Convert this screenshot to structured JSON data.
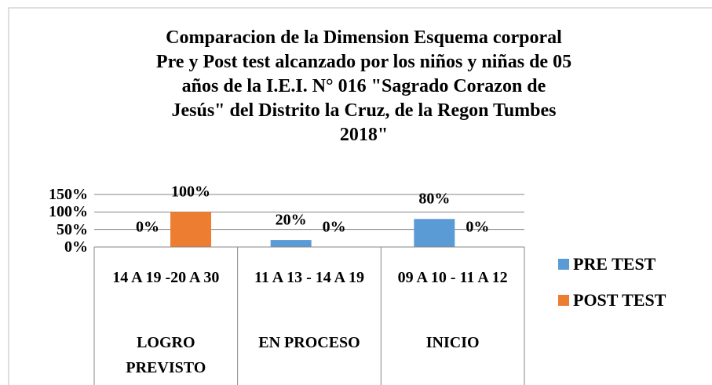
{
  "chart_data": {
    "type": "bar",
    "title": [
      "Comparacion de la Dimension Esquema corporal",
      "Pre y Post test alcanzado por los niños y niñas de 05",
      "años de la I.E.I. N° 016 \"Sagrado Corazon de",
      "Jesús\" del Distrito la Cruz, de la Regon Tumbes",
      "2018\""
    ],
    "categories": [
      "14 A 19 -20 A 30",
      "11 A 13 - 14 A 19",
      "09 A 10 - 11 A 12"
    ],
    "groups": [
      "LOGRO PREVISTO",
      "EN PROCESO",
      "INICIO"
    ],
    "series": [
      {
        "name": "PRE TEST",
        "color": "#5b9bd5",
        "values": [
          0,
          20,
          80
        ],
        "value_labels": [
          "0%",
          "20%",
          "80%"
        ]
      },
      {
        "name": "POST TEST",
        "color": "#ed7d31",
        "values": [
          100,
          0,
          0
        ],
        "value_labels": [
          "100%",
          "0%",
          "0%"
        ]
      }
    ],
    "ylim": [
      0,
      150
    ],
    "yticks": [
      {
        "value": 0,
        "label": "0%"
      },
      {
        "value": 50,
        "label": "50%"
      },
      {
        "value": 100,
        "label": "100%"
      },
      {
        "value": 150,
        "label": "150%"
      }
    ],
    "grid": true,
    "legend": "right"
  }
}
